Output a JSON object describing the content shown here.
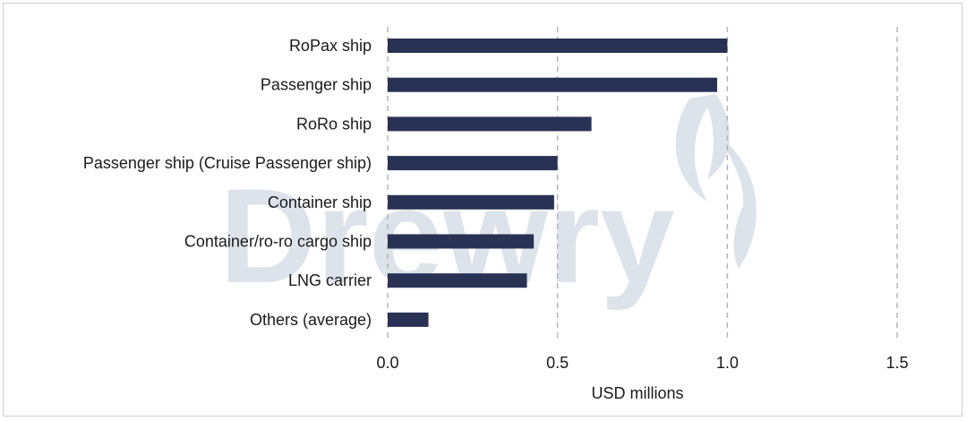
{
  "watermark": {
    "text": "Drewry",
    "color": "#dde3ea"
  },
  "colors": {
    "bar": "#283254",
    "grid": "#b5b5b5",
    "text": "#1a1a1a",
    "frame": "#cfcfcf"
  },
  "chart_data": {
    "type": "bar",
    "orientation": "horizontal",
    "categories": [
      "RoPax ship",
      "Passenger ship",
      "RoRo ship",
      "Passenger ship (Cruise Passenger ship)",
      "Container ship",
      "Container/ro-ro cargo ship",
      "LNG carrier",
      "Others (average)"
    ],
    "values": [
      1.0,
      0.97,
      0.6,
      0.5,
      0.49,
      0.43,
      0.41,
      0.12
    ],
    "xlabel": "USD millions",
    "ylabel": "",
    "title": "",
    "xlim": [
      0,
      1.5
    ],
    "xticks": [
      0.0,
      0.5,
      1.0,
      1.5
    ],
    "xtick_labels": [
      "0.0",
      "0.5",
      "1.0",
      "1.5"
    ],
    "grid": "vertical dashed",
    "legend": "none"
  }
}
